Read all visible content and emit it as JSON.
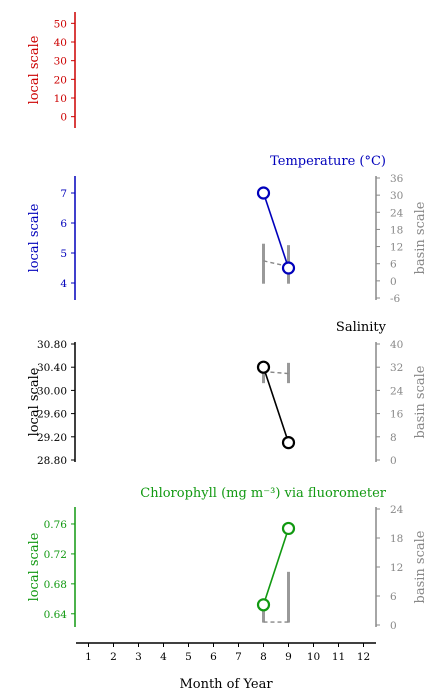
{
  "chart_data": [
    {
      "type": "line",
      "title": "",
      "ylabel_left": "local scale",
      "color": "#cc0000",
      "ylim_left": [
        -5,
        55
      ],
      "left_ticks": [
        "0",
        "10",
        "20",
        "30",
        "40",
        "50"
      ],
      "series": []
    },
    {
      "type": "line",
      "title": "Temperature (°C)",
      "ylabel_left": "local scale",
      "ylabel_right": "basin scale",
      "color": "#0000bb",
      "ylim_left": [
        3.5,
        7.5
      ],
      "left_ticks": [
        "4",
        "5",
        "6",
        "7"
      ],
      "ylim_right": [
        -6,
        36
      ],
      "right_ticks": [
        "-6",
        "0",
        "6",
        "12",
        "18",
        "24",
        "30",
        "36"
      ],
      "series": [
        {
          "x": [
            8,
            9
          ],
          "y": [
            7.0,
            4.5
          ]
        }
      ],
      "basin": {
        "ranges": [
          {
            "x": 8,
            "low": -1,
            "high": 13
          },
          {
            "x": 9,
            "low": -1,
            "high": 12.5
          }
        ],
        "dashed": [
          {
            "x": 8,
            "y": 7
          },
          {
            "x": 9,
            "y": 5
          }
        ]
      }
    },
    {
      "type": "line",
      "title": "Salinity",
      "ylabel_left": "local scale",
      "ylabel_right": "basin scale",
      "color": "#000000",
      "ylim_left": [
        28.8,
        30.8
      ],
      "left_ticks": [
        "28.80",
        "29.20",
        "29.60",
        "30.00",
        "30.40",
        "30.80"
      ],
      "ylim_right": [
        0,
        40
      ],
      "right_ticks": [
        "0",
        "8",
        "16",
        "24",
        "32",
        "40"
      ],
      "series": [
        {
          "x": [
            8,
            9
          ],
          "y": [
            30.4,
            29.1
          ]
        }
      ],
      "basin": {
        "ranges": [
          {
            "x": 8,
            "low": 26.5,
            "high": 33.5
          },
          {
            "x": 9,
            "low": 26.5,
            "high": 33.5
          }
        ],
        "dashed": [
          {
            "x": 8,
            "y": 30.5
          },
          {
            "x": 9,
            "y": 29.8
          }
        ]
      }
    },
    {
      "type": "line",
      "title": "Chlorophyll (mg m⁻³) via fluorometer",
      "ylabel_left": "local scale",
      "ylabel_right": "basin scale",
      "color": "#119911",
      "ylim_left": [
        0.625,
        0.78
      ],
      "left_ticks": [
        "0.64",
        "0.68",
        "0.72",
        "0.76"
      ],
      "ylim_right": [
        0,
        24
      ],
      "right_ticks": [
        "0",
        "6",
        "12",
        "18",
        "24"
      ],
      "series": [
        {
          "x": [
            8,
            9
          ],
          "y": [
            0.652,
            0.754
          ]
        }
      ],
      "basin": {
        "ranges": [
          {
            "x": 8,
            "low": 0.5,
            "high": 5.5
          },
          {
            "x": 9,
            "low": 0.5,
            "high": 11
          }
        ],
        "dashed": [
          {
            "x": 8,
            "y": 0.6
          },
          {
            "x": 9,
            "y": 0.6
          }
        ]
      }
    }
  ],
  "x_axis": {
    "label": "Month of Year",
    "ticks": [
      "1",
      "2",
      "3",
      "4",
      "5",
      "6",
      "7",
      "8",
      "9",
      "10",
      "11",
      "12"
    ],
    "values": [
      1,
      2,
      3,
      4,
      5,
      6,
      7,
      8,
      9,
      10,
      11,
      12
    ],
    "xlim": [
      0.5,
      12.5
    ]
  }
}
